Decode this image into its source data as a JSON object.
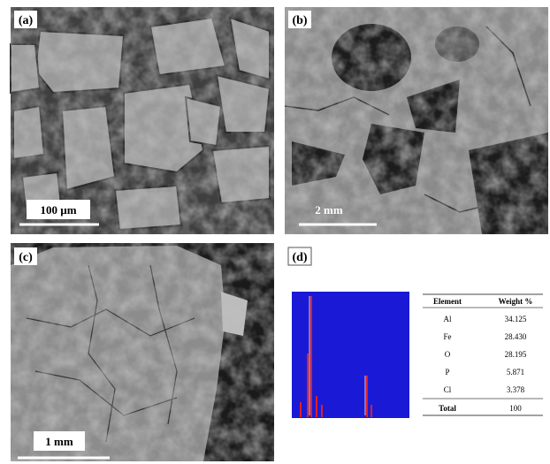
{
  "panels": [
    {
      "label": "(a)",
      "scale_bar": "100 µm"
    },
    {
      "label": "(b)",
      "scale_bar": "2 mm"
    },
    {
      "label": "(c)",
      "scale_bar": "1 mm"
    },
    {
      "label": "(d)"
    }
  ],
  "table": {
    "header": [
      "Element",
      "Weight %"
    ],
    "rows": [
      [
        "Al",
        "34.125"
      ],
      [
        "Fe",
        "28.430"
      ],
      [
        "O",
        "28.195"
      ],
      [
        "P",
        "5.871"
      ],
      [
        "Cl",
        "3.378"
      ],
      [
        "Total",
        "100"
      ]
    ]
  }
}
